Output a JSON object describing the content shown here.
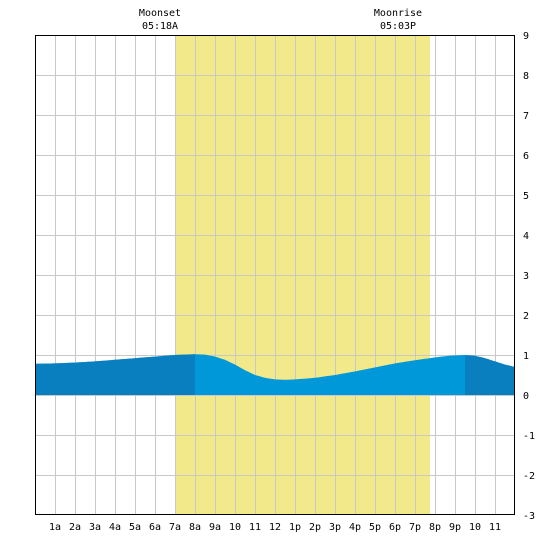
{
  "chart_data": {
    "type": "area",
    "title": "",
    "xlabel": "",
    "ylabel": "",
    "xlim": [
      0,
      24
    ],
    "ylim": [
      -3,
      9
    ],
    "y_ticks": [
      -3,
      -2,
      -1,
      0,
      1,
      2,
      3,
      4,
      5,
      6,
      7,
      8,
      9
    ],
    "x_tick_labels": [
      "1a",
      "2a",
      "3a",
      "4a",
      "5a",
      "6a",
      "7a",
      "8a",
      "9a",
      "10",
      "11",
      "12",
      "1p",
      "2p",
      "3p",
      "4p",
      "5p",
      "6p",
      "7p",
      "8p",
      "9p",
      "10",
      "11"
    ],
    "grid": true,
    "moon_up_band": {
      "start_hour": 7.0,
      "end_hour": 19.75,
      "color": "#f2e98a"
    },
    "annotations": [
      {
        "title": "Moonset",
        "time": "05:18A"
      },
      {
        "title": "Moonrise",
        "time": "05:03P"
      }
    ],
    "series": [
      {
        "x": [
          0,
          1,
          2,
          3,
          4,
          5,
          6,
          7,
          7.5,
          8,
          8.5,
          9,
          9.5,
          10,
          10.5,
          11,
          11.5,
          12,
          12.5,
          13,
          14,
          15,
          16,
          17,
          18,
          19,
          20,
          20.5,
          21,
          21.5,
          22,
          22.5,
          23,
          23.5,
          24
        ],
        "values": [
          0.78,
          0.79,
          0.81,
          0.84,
          0.88,
          0.92,
          0.96,
          1.0,
          1.01,
          1.02,
          1.01,
          0.96,
          0.88,
          0.76,
          0.62,
          0.5,
          0.43,
          0.39,
          0.38,
          0.39,
          0.43,
          0.5,
          0.59,
          0.69,
          0.79,
          0.87,
          0.94,
          0.97,
          0.99,
          1.0,
          0.98,
          0.92,
          0.84,
          0.76,
          0.7
        ]
      }
    ],
    "daylight_colors": {
      "day": "#0098d8",
      "night": "#0a7fbf"
    },
    "night_periods": [
      [
        0,
        8
      ],
      [
        21.5,
        24
      ]
    ],
    "colors": {
      "grid": "#c8c8c8",
      "axis": "#000000",
      "background": "#ffffff"
    }
  }
}
